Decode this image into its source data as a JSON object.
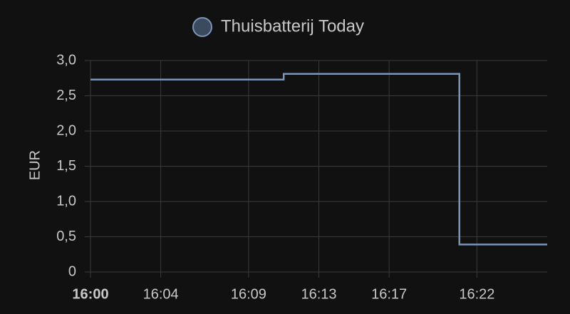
{
  "chart_data": {
    "type": "line",
    "step": true,
    "legend": "top",
    "y_label": "EUR",
    "x": [
      "16:00",
      "16:11",
      "16:21",
      "16:26"
    ],
    "xlim": [
      "16:00",
      "16:26"
    ],
    "xticks": [
      "16:00",
      "16:04",
      "16:09",
      "16:13",
      "16:17",
      "16:22"
    ],
    "bold_xtick": "16:00",
    "ylim": [
      0,
      3
    ],
    "yticks": [
      0,
      {
        "value": 0.5,
        "label": "0,5"
      },
      {
        "value": 1,
        "label": "1,0"
      },
      {
        "value": 1.5,
        "label": "1,5"
      },
      {
        "value": 2,
        "label": "2,0"
      },
      {
        "value": 2.5,
        "label": "2,5"
      },
      {
        "value": 3,
        "label": "3,0"
      }
    ],
    "grid": true,
    "series": [
      {
        "name": "Thuisbatterij Today",
        "color": "#7b95b6",
        "values": [
          2.73,
          2.81,
          0.39,
          0.39
        ]
      }
    ]
  }
}
